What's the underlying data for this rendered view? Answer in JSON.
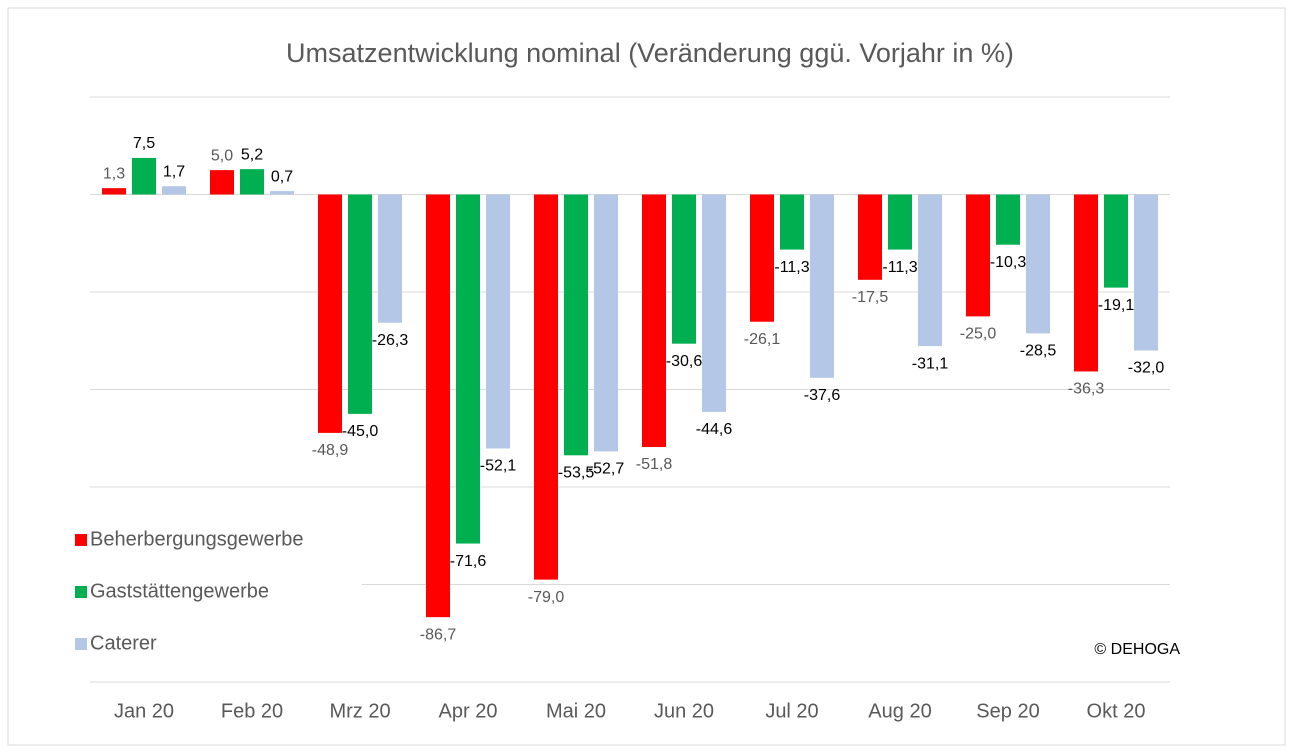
{
  "chart_data": {
    "type": "bar",
    "title": "Umsatzentwicklung nominal (Veränderung ggü. Vorjahr in %)",
    "annotation": "© DEHOGA",
    "categories": [
      "Jan 20",
      "Feb 20",
      "Mrz 20",
      "Apr 20",
      "Mai 20",
      "Jun 20",
      "Jul 20",
      "Aug 20",
      "Sep 20",
      "Okt 20"
    ],
    "series": [
      {
        "name": "Beherbergungsgewerbe",
        "color": "#ff0000",
        "values": [
          1.3,
          5.0,
          -48.9,
          -86.7,
          -79.0,
          -51.8,
          -26.1,
          -17.5,
          -25.0,
          -36.3
        ],
        "value_labels": [
          "1,3",
          "5,0",
          "-48,9",
          "-86,7",
          "-79,0",
          "-51,8",
          "-26,1",
          "-17,5",
          "-25,0",
          "-36,3"
        ]
      },
      {
        "name": "Gaststättengewerbe",
        "color": "#00b050",
        "values": [
          7.5,
          5.2,
          -45.0,
          -71.6,
          -53.5,
          -30.6,
          -11.3,
          -11.3,
          -10.3,
          -19.1
        ],
        "value_labels": [
          "7,5",
          "5,2",
          "-45,0",
          "-71,6",
          "-53,5",
          "-30,6",
          "-11,3",
          "-11,3",
          "-10,3",
          "-19,1"
        ]
      },
      {
        "name": "Caterer",
        "color": "#b4c7e7",
        "values": [
          1.7,
          0.7,
          -26.3,
          -52.1,
          -52.7,
          -44.6,
          -37.6,
          -31.1,
          -28.5,
          -32.0
        ],
        "value_labels": [
          "1,7",
          "0,7",
          "-26,3",
          "-52,1",
          "-52,7",
          "-44,6",
          "-37,6",
          "-31,1",
          "-28,5",
          "-32,0"
        ]
      }
    ],
    "ylim": [
      -100,
      20
    ],
    "yticks": [
      -100,
      -80,
      -60,
      -40,
      -20,
      0,
      20
    ],
    "grid": true,
    "legend": "bottom-left"
  }
}
